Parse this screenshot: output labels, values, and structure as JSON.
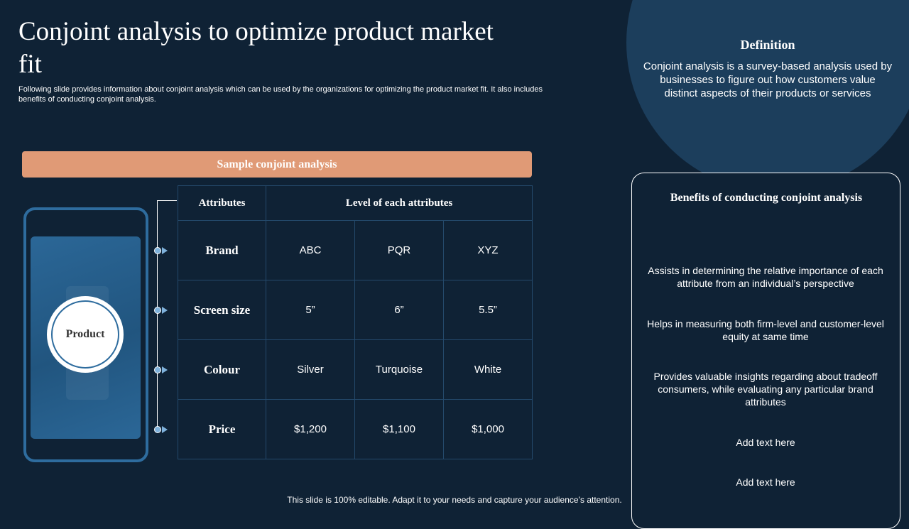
{
  "slide": {
    "title": "Conjoint analysis to optimize product market fit",
    "subtitle": "Following slide provides information about conjoint analysis which can be used by the organizations for optimizing the product market fit. It also includes benefits of conducting conjoint analysis."
  },
  "definition": {
    "title": "Definition",
    "text": "Conjoint analysis is a survey-based analysis used by businesses to figure out how customers value distinct aspects of their products or services"
  },
  "sample": {
    "banner": "Sample conjoint analysis",
    "product_label": "Product",
    "table": {
      "header": {
        "attributes": "Attributes",
        "levels": "Level of each attributes"
      },
      "rows": [
        {
          "label": "Brand",
          "values": [
            "ABC",
            "PQR",
            "XYZ"
          ]
        },
        {
          "label": "Screen size",
          "values": [
            "5”",
            "6”",
            "5.5”"
          ]
        },
        {
          "label": "Colour",
          "values": [
            "Silver",
            "Turquoise",
            "White"
          ]
        },
        {
          "label": "Price",
          "values": [
            "$1,200",
            "$1,100",
            "$1,000"
          ]
        }
      ]
    }
  },
  "benefits": {
    "title": "Benefits of conducting conjoint analysis",
    "items": [
      "Assists in determining the relative importance of each attribute from an individual’s perspective",
      "Helps in measuring both firm-level and customer-level equity at same time",
      "Provides valuable insights regarding about tradeoff consumers, while evaluating any particular brand attributes",
      "Add text here",
      "Add text here"
    ]
  },
  "footer": "This slide is 100% editable. Adapt it to your needs and capture your audience’s attention.",
  "colors": {
    "background": "#0f2235",
    "accent": "#e09a76",
    "circle": "#1c3e5c",
    "phone": "#2e6c9e"
  }
}
